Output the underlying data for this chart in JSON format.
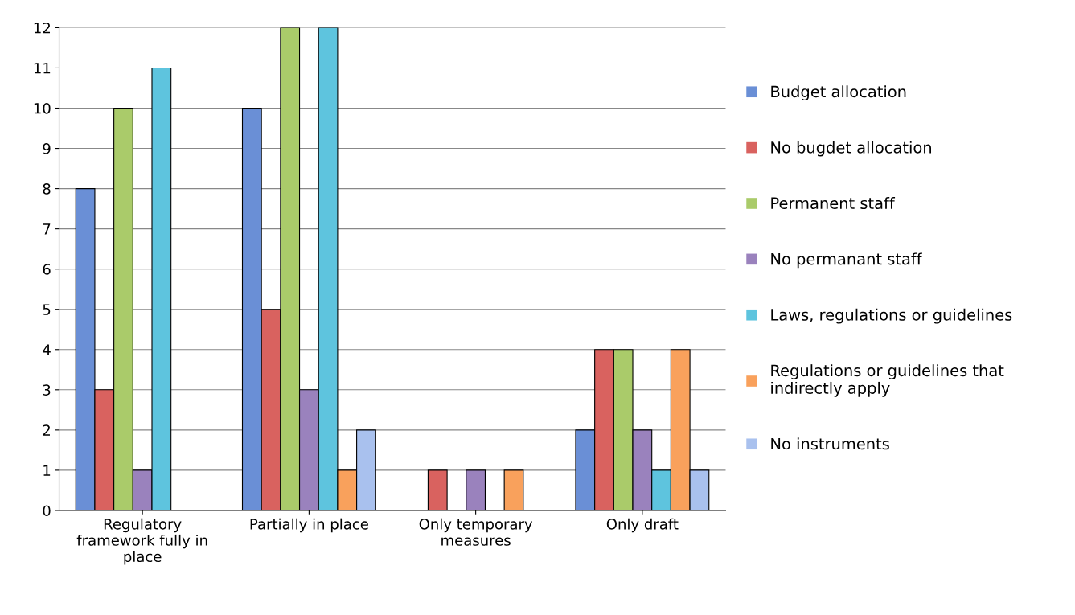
{
  "chart_data": {
    "type": "bar",
    "categories": [
      "Regulatory framework fully in place",
      "Partially in place",
      "Only temporary measures",
      "Only draft"
    ],
    "series": [
      {
        "name": "Budget allocation",
        "color": "#6a8fd6",
        "values": [
          8,
          10,
          0,
          2
        ]
      },
      {
        "name": "No bugdet allocation",
        "color": "#d9625f",
        "values": [
          3,
          5,
          1,
          4
        ]
      },
      {
        "name": "Permanent staff",
        "color": "#aacb6a",
        "values": [
          10,
          12,
          0,
          4
        ]
      },
      {
        "name": "No permanant staff",
        "color": "#9a82bd",
        "values": [
          1,
          3,
          1,
          2
        ]
      },
      {
        "name": "Laws, regulations or guidelines",
        "color": "#5ec4de",
        "values": [
          11,
          12,
          0,
          1
        ]
      },
      {
        "name": "Regulations or guidelines that indirectly apply",
        "color": "#f9a15c",
        "values": [
          0,
          1,
          1,
          4
        ]
      },
      {
        "name": "No instruments",
        "color": "#a9c1ee",
        "values": [
          0,
          2,
          0,
          1
        ]
      }
    ],
    "ylim": [
      0,
      12
    ],
    "yticks": [
      0,
      1,
      2,
      3,
      4,
      5,
      6,
      7,
      8,
      9,
      10,
      11,
      12
    ],
    "grid": "y",
    "legend": "right"
  }
}
